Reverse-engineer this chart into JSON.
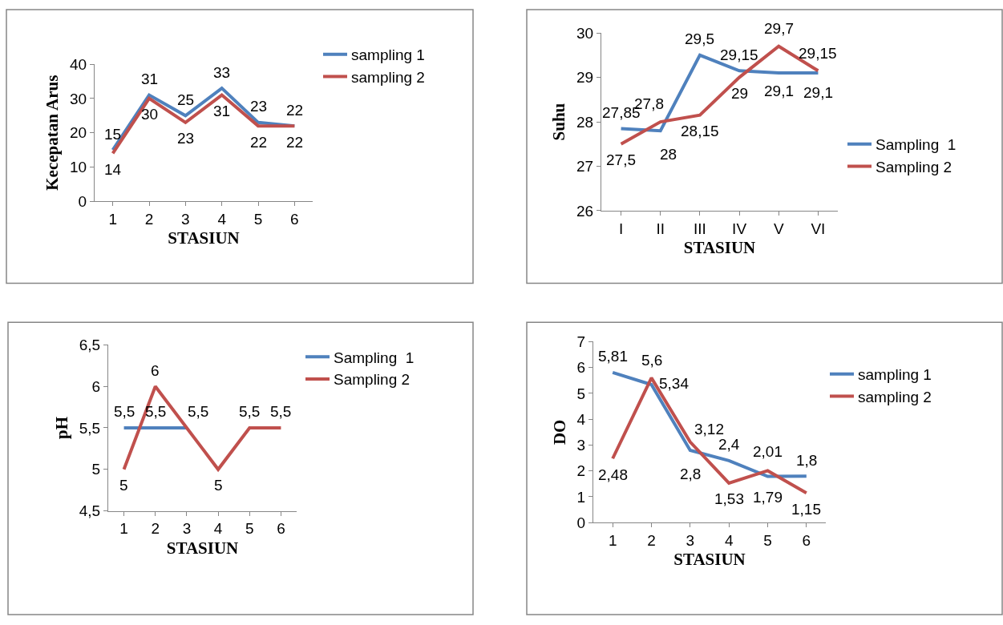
{
  "chart_data": [
    {
      "type": "line",
      "xlabel": "STASIUN",
      "ylabel": "Kecepatan Arus",
      "categories": [
        "1",
        "2",
        "3",
        "4",
        "5",
        "6"
      ],
      "ylim": [
        0,
        40
      ],
      "yticks": [
        0,
        10,
        20,
        30,
        40
      ],
      "legend": "right",
      "grid": false,
      "series": [
        {
          "name": "sampling 1",
          "color": "#4f81bd",
          "values": [
            15,
            31,
            25,
            33,
            23,
            22
          ],
          "value_labels": [
            "15",
            "31",
            "25",
            "33",
            "23",
            "22"
          ]
        },
        {
          "name": "sampling 2",
          "color": "#c0504d",
          "values": [
            14,
            30,
            23,
            31,
            22,
            22
          ],
          "value_labels": [
            "14",
            "30",
            "23",
            "31",
            "22",
            "22"
          ]
        }
      ]
    },
    {
      "type": "line",
      "xlabel": "STASIUN",
      "ylabel": "Suhu",
      "categories": [
        "I",
        "II",
        "III",
        "IV",
        "V",
        "VI"
      ],
      "ylim": [
        26,
        30
      ],
      "yticks": [
        26,
        27,
        28,
        29,
        30
      ],
      "legend": "right",
      "grid": false,
      "series": [
        {
          "name": "Sampling  1",
          "color": "#4f81bd",
          "values": [
            27.85,
            27.8,
            29.5,
            29.15,
            29.1,
            29.1
          ],
          "value_labels": [
            "27,85",
            "27,8",
            "29,5",
            "29,15",
            "29,1",
            "29,1"
          ]
        },
        {
          "name": "Sampling 2",
          "color": "#c0504d",
          "values": [
            27.5,
            28,
            28.15,
            29,
            29.7,
            29.15
          ],
          "value_labels": [
            "27,5",
            "28",
            "28,15",
            "29",
            "29,7",
            "29,15"
          ]
        }
      ]
    },
    {
      "type": "line",
      "xlabel": "STASIUN",
      "ylabel": "pH",
      "categories": [
        "1",
        "2",
        "3",
        "4",
        "5",
        "6"
      ],
      "ylim": [
        4.5,
        6.5
      ],
      "yticks": [
        {
          "value": 4.5,
          "label": "4,5"
        },
        5,
        {
          "value": 5.5,
          "label": "5,5"
        },
        6,
        {
          "value": 6.5,
          "label": "6,5"
        }
      ],
      "legend": "right",
      "grid": false,
      "series": [
        {
          "name": "Sampling  1",
          "color": "#4f81bd",
          "values": [
            5.5,
            5.5,
            5.5,
            null,
            null,
            null
          ],
          "value_labels": [
            "5,5",
            "5,5",
            "5,5",
            null,
            null,
            null
          ]
        },
        {
          "name": "Sampling 2",
          "color": "#c0504d",
          "values": [
            5,
            6,
            5.5,
            5,
            5.5,
            5.5
          ],
          "value_labels": [
            "5",
            "6",
            null,
            "5",
            "5,5",
            "5,5"
          ]
        }
      ]
    },
    {
      "type": "line",
      "xlabel": "STASIUN",
      "ylabel": "DO",
      "categories": [
        "1",
        "2",
        "3",
        "4",
        "5",
        "6"
      ],
      "ylim": [
        0,
        7
      ],
      "yticks": [
        0,
        1,
        2,
        3,
        4,
        5,
        6,
        7
      ],
      "legend": "right",
      "grid": false,
      "series": [
        {
          "name": "sampling 1",
          "color": "#4f81bd",
          "values": [
            5.81,
            5.34,
            2.8,
            2.4,
            1.79,
            1.8
          ],
          "value_labels": [
            "5,81",
            "5,34",
            "2,8",
            "2,4",
            "1,79",
            "1,8"
          ]
        },
        {
          "name": "sampling 2",
          "color": "#c0504d",
          "values": [
            2.48,
            5.6,
            3.12,
            1.53,
            2.01,
            1.15
          ],
          "value_labels": [
            "2,48",
            "5,6",
            "3,12",
            "1,53",
            "2,01",
            "1,15"
          ]
        }
      ]
    }
  ]
}
